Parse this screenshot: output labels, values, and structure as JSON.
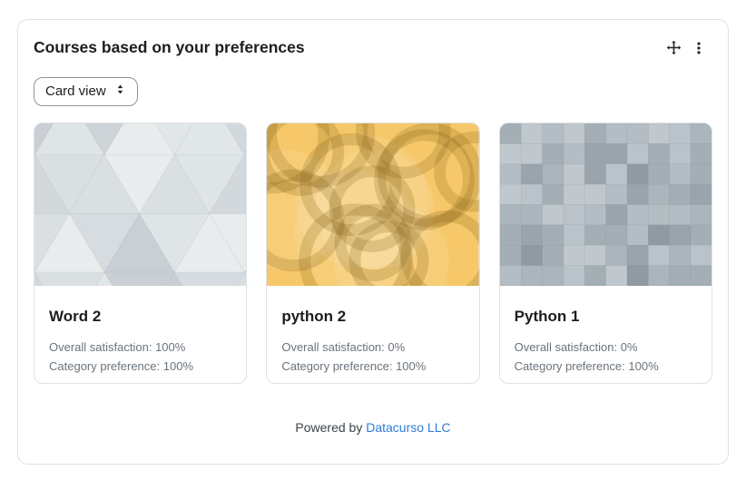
{
  "panel": {
    "title": "Courses based on your preferences",
    "view_selector": "Card view",
    "footer_prefix": "Powered by",
    "footer_link": "Datacurso LLC"
  },
  "labels": {
    "overall_satisfaction": "Overall satisfaction:",
    "category_preference": "Category preference:"
  },
  "courses": [
    {
      "name": "Word 2",
      "overall_satisfaction": "100%",
      "category_preference": "100%",
      "pattern": "triangles"
    },
    {
      "name": "python 2",
      "overall_satisfaction": "0%",
      "category_preference": "100%",
      "pattern": "rings"
    },
    {
      "name": "Python 1",
      "overall_satisfaction": "0%",
      "category_preference": "100%",
      "pattern": "mosaic"
    }
  ],
  "colors": {
    "link_blue": "#2e7cd6",
    "panel_border": "#dee2e6",
    "muted_text": "#6a737b",
    "icon_dark": "#212529",
    "triangles_base": "#dde2e5",
    "rings_base": "#f7c869",
    "mosaic_base": "#b3bdc4"
  },
  "icons": {
    "move": "✥",
    "kebab_menu": "⋮",
    "sort_arrows": "⇕"
  }
}
